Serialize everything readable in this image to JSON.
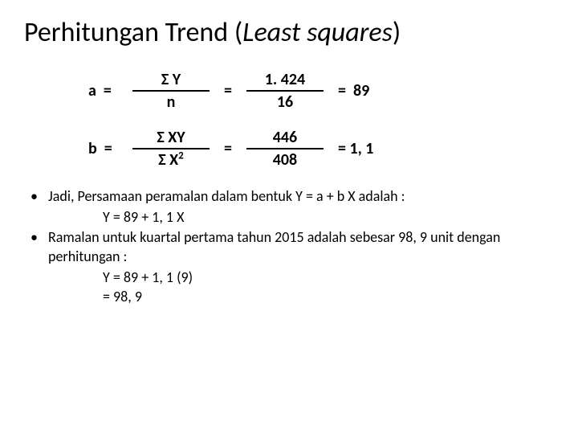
{
  "colors": {
    "background": "#ffffff",
    "text": "#000000",
    "rule": "#000000"
  },
  "typography": {
    "title_fontsize": 34,
    "body_fontsize": 18,
    "eq_fontsize": 20,
    "title_weight": 400,
    "eq_weight": 700,
    "family": "Calibri"
  },
  "title": {
    "plain": "Perhitungan Trend (",
    "italic": "Least squares",
    "close": ")"
  },
  "eq_a": {
    "lhs": "a  =",
    "num": "Σ Y",
    "den": "n",
    "mid": "=",
    "num2": "1. 424",
    "den2": "16",
    "rhs": "=  89"
  },
  "eq_b": {
    "lhs": "b  =",
    "num": "Σ XY",
    "den_pre": "Σ X",
    "den_sup": "2",
    "mid": "=",
    "num2": "446",
    "den2": "408",
    "rhs": "= 1, 1"
  },
  "bullets": {
    "b1": "Jadi, Persamaan peramalan dalam bentuk Y = a  +  b X  adalah :",
    "b1_line2": "Y = 89 + 1, 1 X",
    "b2": "Ramalan untuk kuartal pertama tahun 2015 adalah sebesar 98, 9 unit dengan perhitungan :",
    "b2_line2": "Y = 89 + 1, 1 (9)",
    "b2_line3": "= 98, 9"
  }
}
